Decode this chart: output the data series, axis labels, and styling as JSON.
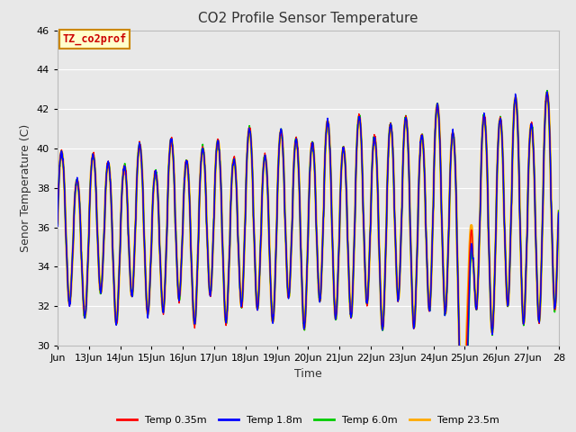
{
  "title": "CO2 Profile Sensor Temperature",
  "xlabel": "Time",
  "ylabel": "Senor Temperature (C)",
  "ylim": [
    30,
    46
  ],
  "xlim_days": [
    12,
    28
  ],
  "annotation_text": "TZ_co2prof",
  "annotation_color": "#cc0000",
  "annotation_bg": "#ffffcc",
  "annotation_border": "#cc8800",
  "legend_labels": [
    "Temp 0.35m",
    "Temp 1.8m",
    "Temp 6.0m",
    "Temp 23.5m"
  ],
  "legend_colors": [
    "#ff0000",
    "#0000ff",
    "#00cc00",
    "#ffaa00"
  ],
  "bg_color": "#e8e8e8",
  "grid_color": "#ffffff",
  "title_fontsize": 11,
  "axis_fontsize": 9,
  "tick_fontsize": 8,
  "yticks": [
    30,
    32,
    34,
    36,
    38,
    40,
    42,
    44,
    46
  ],
  "xtick_labels": [
    "Jun",
    "13Jun",
    "14Jun",
    "15Jun",
    "16Jun",
    "17Jun",
    "18Jun",
    "19Jun",
    "20Jun",
    "21Jun",
    "22Jun",
    "23Jun",
    "24Jun",
    "25Jun",
    "26Jun",
    "27Jun",
    "28"
  ],
  "xtick_positions": [
    12,
    13,
    14,
    15,
    16,
    17,
    18,
    19,
    20,
    21,
    22,
    23,
    24,
    25,
    26,
    27,
    28
  ],
  "figsize": [
    6.4,
    4.8
  ],
  "dpi": 100
}
